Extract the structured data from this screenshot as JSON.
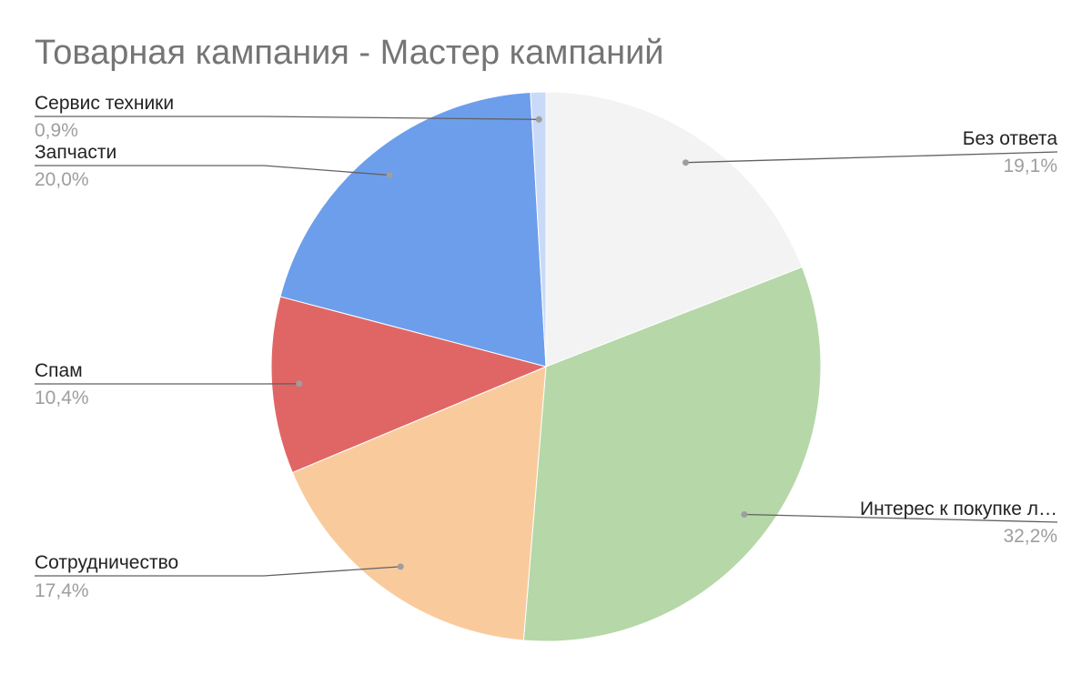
{
  "chart_data": {
    "type": "pie",
    "title": "Товарная кампания - Мастер кампаний",
    "slices": [
      {
        "label": "Без ответа",
        "percent_label": "19,1%",
        "value": 19.1,
        "color": "#f3f3f3"
      },
      {
        "label": "Интерес к покупке л…",
        "percent_label": "32,2%",
        "value": 32.2,
        "color": "#b6d7a8"
      },
      {
        "label": "Сотрудничество",
        "percent_label": "17,4%",
        "value": 17.4,
        "color": "#f9cb9c"
      },
      {
        "label": "Спам",
        "percent_label": "10,4%",
        "value": 10.4,
        "color": "#e06666"
      },
      {
        "label": "Запчасти",
        "percent_label": "20,0%",
        "value": 20.0,
        "color": "#6d9eeb"
      },
      {
        "label": "Сервис техники",
        "percent_label": "0,9%",
        "value": 0.9,
        "color": "#c9daf8"
      }
    ],
    "start_angle": "12 o'clock",
    "direction": "clockwise",
    "legend": "none"
  }
}
